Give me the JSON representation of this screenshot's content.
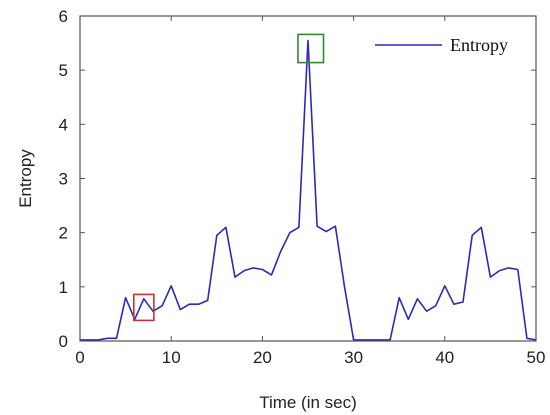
{
  "chart_data": {
    "type": "line",
    "title": "",
    "xlabel": "Time (in sec)",
    "ylabel": "Entropy",
    "xlim": [
      0,
      50
    ],
    "ylim": [
      0,
      6
    ],
    "xticks": [
      0,
      10,
      20,
      30,
      40,
      50
    ],
    "yticks": [
      0,
      1,
      2,
      3,
      4,
      5,
      6
    ],
    "grid": false,
    "legend": {
      "position": "top-right",
      "entries": [
        "Entropy"
      ]
    },
    "series": [
      {
        "name": "Entropy",
        "color": "#2b2bb8",
        "x": [
          0,
          1,
          2,
          3,
          4,
          5,
          6,
          7,
          8,
          9,
          10,
          11,
          12,
          13,
          14,
          15,
          16,
          17,
          18,
          19,
          20,
          21,
          22,
          23,
          24,
          25,
          26,
          27,
          28,
          29,
          30,
          31,
          32,
          33,
          34,
          35,
          36,
          37,
          38,
          39,
          40,
          41,
          42,
          43,
          44,
          45,
          46,
          47,
          48,
          49,
          50
        ],
        "y": [
          0.02,
          0.02,
          0.02,
          0.05,
          0.05,
          0.8,
          0.4,
          0.78,
          0.55,
          0.65,
          1.02,
          0.58,
          0.68,
          0.68,
          0.75,
          1.95,
          2.1,
          1.18,
          1.3,
          1.35,
          1.32,
          1.22,
          1.65,
          2.0,
          2.1,
          5.55,
          2.12,
          2.02,
          2.12,
          1.0,
          0.02,
          0.02,
          0.02,
          0.02,
          0.02,
          0.8,
          0.4,
          0.78,
          0.55,
          0.65,
          1.02,
          0.68,
          0.72,
          1.95,
          2.1,
          1.18,
          1.3,
          1.35,
          1.32,
          0.05,
          0.02
        ]
      }
    ],
    "annotations": [
      {
        "shape": "square",
        "color": "#c83232",
        "center": [
          7,
          0.62
        ],
        "width_x": 2.2,
        "height_y": 0.48
      },
      {
        "shape": "square",
        "color": "#2e8b2e",
        "center": [
          25.3,
          5.4
        ],
        "width_x": 2.8,
        "height_y": 0.52
      }
    ]
  }
}
